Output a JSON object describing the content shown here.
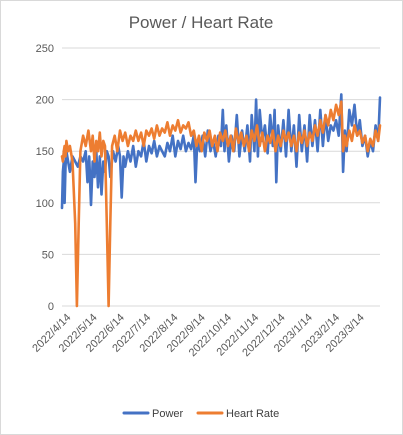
{
  "chart_data": {
    "type": "line",
    "title": "Power / Heart Rate",
    "xlabel": "",
    "ylabel": "",
    "ylim": [
      0,
      250
    ],
    "yticks": [
      "0",
      "50",
      "100",
      "150",
      "200",
      "250"
    ],
    "xlim": [
      "2022-04-08",
      "2023-04-05"
    ],
    "xticks": [
      "2022/4/14",
      "2022/5/14",
      "2022/6/14",
      "2022/7/14",
      "2022/8/14",
      "2022/9/14",
      "2022/10/14",
      "2022/11/14",
      "2022/12/14",
      "2023/1/14",
      "2023/2/14",
      "2023/3/14"
    ],
    "grid": "horizontal",
    "legend": "bottom",
    "colors": {
      "power": "#4472c4",
      "heart_rate": "#ed7d31",
      "grid": "#d9d9d9",
      "text": "#595959"
    },
    "series": [
      {
        "name": "Power",
        "points": [
          [
            "2022-04-08",
            95
          ],
          [
            "2022-04-09",
            130
          ],
          [
            "2022-04-10",
            140
          ],
          [
            "2022-04-11",
            100
          ],
          [
            "2022-04-12",
            135
          ],
          [
            "2022-04-13",
            150
          ],
          [
            "2022-04-15",
            140
          ],
          [
            "2022-04-17",
            130
          ],
          [
            "2022-04-20",
            145
          ],
          [
            "2022-04-23",
            140
          ],
          [
            "2022-04-26",
            135
          ],
          [
            "2022-04-29",
            145
          ],
          [
            "2022-05-02",
            140
          ],
          [
            "2022-05-05",
            150
          ],
          [
            "2022-05-07",
            120
          ],
          [
            "2022-05-09",
            145
          ],
          [
            "2022-05-11",
            98
          ],
          [
            "2022-05-13",
            140
          ],
          [
            "2022-05-15",
            125
          ],
          [
            "2022-05-17",
            150
          ],
          [
            "2022-05-19",
            115
          ],
          [
            "2022-05-21",
            145
          ],
          [
            "2022-05-23",
            108
          ],
          [
            "2022-05-25",
            140
          ],
          [
            "2022-05-27",
            130
          ],
          [
            "2022-05-29",
            150
          ],
          [
            "2022-05-31",
            145
          ],
          [
            "2022-06-02",
            125
          ],
          [
            "2022-06-05",
            150
          ],
          [
            "2022-06-08",
            140
          ],
          [
            "2022-06-11",
            155
          ],
          [
            "2022-06-13",
            145
          ],
          [
            "2022-06-15",
            105
          ],
          [
            "2022-06-17",
            145
          ],
          [
            "2022-06-19",
            135
          ],
          [
            "2022-06-22",
            150
          ],
          [
            "2022-06-25",
            140
          ],
          [
            "2022-06-28",
            155
          ],
          [
            "2022-07-01",
            135
          ],
          [
            "2022-07-04",
            150
          ],
          [
            "2022-07-07",
            145
          ],
          [
            "2022-07-10",
            160
          ],
          [
            "2022-07-13",
            140
          ],
          [
            "2022-07-16",
            155
          ],
          [
            "2022-07-19",
            148
          ],
          [
            "2022-07-22",
            160
          ],
          [
            "2022-07-25",
            145
          ],
          [
            "2022-07-28",
            155
          ],
          [
            "2022-07-31",
            150
          ],
          [
            "2022-08-03",
            145
          ],
          [
            "2022-08-06",
            158
          ],
          [
            "2022-08-09",
            150
          ],
          [
            "2022-08-12",
            165
          ],
          [
            "2022-08-15",
            145
          ],
          [
            "2022-08-18",
            160
          ],
          [
            "2022-08-21",
            152
          ],
          [
            "2022-08-24",
            165
          ],
          [
            "2022-08-27",
            150
          ],
          [
            "2022-08-30",
            158
          ],
          [
            "2022-09-02",
            152
          ],
          [
            "2022-09-05",
            165
          ],
          [
            "2022-09-07",
            120
          ],
          [
            "2022-09-09",
            160
          ],
          [
            "2022-09-12",
            150
          ],
          [
            "2022-09-15",
            165
          ],
          [
            "2022-09-18",
            145
          ],
          [
            "2022-09-21",
            170
          ],
          [
            "2022-09-24",
            150
          ],
          [
            "2022-09-27",
            160
          ],
          [
            "2022-09-30",
            145
          ],
          [
            "2022-10-03",
            165
          ],
          [
            "2022-10-06",
            155
          ],
          [
            "2022-10-08",
            190
          ],
          [
            "2022-10-10",
            150
          ],
          [
            "2022-10-12",
            175
          ],
          [
            "2022-10-15",
            140
          ],
          [
            "2022-10-18",
            165
          ],
          [
            "2022-10-21",
            150
          ],
          [
            "2022-10-24",
            185
          ],
          [
            "2022-10-27",
            145
          ],
          [
            "2022-10-30",
            170
          ],
          [
            "2022-11-02",
            150
          ],
          [
            "2022-11-05",
            175
          ],
          [
            "2022-11-08",
            140
          ],
          [
            "2022-11-10",
            185
          ],
          [
            "2022-11-13",
            150
          ],
          [
            "2022-11-15",
            200
          ],
          [
            "2022-11-17",
            145
          ],
          [
            "2022-11-19",
            190
          ],
          [
            "2022-11-22",
            160
          ],
          [
            "2022-11-25",
            175
          ],
          [
            "2022-11-28",
            148
          ],
          [
            "2022-12-01",
            185
          ],
          [
            "2022-12-04",
            155
          ],
          [
            "2022-12-06",
            190
          ],
          [
            "2022-12-08",
            120
          ],
          [
            "2022-12-10",
            175
          ],
          [
            "2022-12-13",
            150
          ],
          [
            "2022-12-16",
            180
          ],
          [
            "2022-12-19",
            145
          ],
          [
            "2022-12-22",
            190
          ],
          [
            "2022-12-25",
            150
          ],
          [
            "2022-12-28",
            175
          ],
          [
            "2022-12-31",
            135
          ],
          [
            "2023-01-03",
            185
          ],
          [
            "2023-01-06",
            150
          ],
          [
            "2023-01-09",
            175
          ],
          [
            "2023-01-12",
            140
          ],
          [
            "2023-01-15",
            185
          ],
          [
            "2023-01-18",
            155
          ],
          [
            "2023-01-21",
            180
          ],
          [
            "2023-01-24",
            150
          ],
          [
            "2023-01-27",
            190
          ],
          [
            "2023-01-30",
            155
          ],
          [
            "2023-02-02",
            185
          ],
          [
            "2023-02-05",
            160
          ],
          [
            "2023-02-08",
            175
          ],
          [
            "2023-02-11",
            170
          ],
          [
            "2023-02-14",
            180
          ],
          [
            "2023-02-17",
            165
          ],
          [
            "2023-02-20",
            205
          ],
          [
            "2023-02-22",
            130
          ],
          [
            "2023-02-24",
            170
          ],
          [
            "2023-02-26",
            150
          ],
          [
            "2023-03-01",
            190
          ],
          [
            "2023-03-04",
            175
          ],
          [
            "2023-03-07",
            195
          ],
          [
            "2023-03-10",
            165
          ],
          [
            "2023-03-13",
            180
          ],
          [
            "2023-03-16",
            155
          ],
          [
            "2023-03-19",
            165
          ],
          [
            "2023-03-22",
            145
          ],
          [
            "2023-03-25",
            160
          ],
          [
            "2023-03-28",
            150
          ],
          [
            "2023-03-31",
            175
          ],
          [
            "2023-04-03",
            160
          ],
          [
            "2023-04-05",
            202
          ]
        ]
      },
      {
        "name": "Heart Rate",
        "points": [
          [
            "2022-04-08",
            145
          ],
          [
            "2022-04-09",
            140
          ],
          [
            "2022-04-10",
            150
          ],
          [
            "2022-04-11",
            155
          ],
          [
            "2022-04-12",
            145
          ],
          [
            "2022-04-13",
            160
          ],
          [
            "2022-04-15",
            150
          ],
          [
            "2022-04-17",
            155
          ],
          [
            "2022-04-20",
            140
          ],
          [
            "2022-04-23",
            80
          ],
          [
            "2022-04-25",
            0
          ],
          [
            "2022-04-27",
            80
          ],
          [
            "2022-04-29",
            150
          ],
          [
            "2022-05-02",
            165
          ],
          [
            "2022-05-05",
            155
          ],
          [
            "2022-05-08",
            170
          ],
          [
            "2022-05-11",
            150
          ],
          [
            "2022-05-13",
            165
          ],
          [
            "2022-05-15",
            140
          ],
          [
            "2022-05-17",
            160
          ],
          [
            "2022-05-19",
            150
          ],
          [
            "2022-05-21",
            168
          ],
          [
            "2022-05-23",
            145
          ],
          [
            "2022-05-25",
            160
          ],
          [
            "2022-05-27",
            155
          ],
          [
            "2022-05-29",
            80
          ],
          [
            "2022-05-31",
            0
          ],
          [
            "2022-06-02",
            80
          ],
          [
            "2022-06-04",
            155
          ],
          [
            "2022-06-07",
            165
          ],
          [
            "2022-06-10",
            150
          ],
          [
            "2022-06-13",
            170
          ],
          [
            "2022-06-16",
            160
          ],
          [
            "2022-06-19",
            168
          ],
          [
            "2022-06-22",
            155
          ],
          [
            "2022-06-25",
            165
          ],
          [
            "2022-06-28",
            160
          ],
          [
            "2022-07-01",
            170
          ],
          [
            "2022-07-04",
            160
          ],
          [
            "2022-07-07",
            168
          ],
          [
            "2022-07-10",
            155
          ],
          [
            "2022-07-13",
            170
          ],
          [
            "2022-07-16",
            165
          ],
          [
            "2022-07-19",
            172
          ],
          [
            "2022-07-22",
            162
          ],
          [
            "2022-07-25",
            175
          ],
          [
            "2022-07-28",
            165
          ],
          [
            "2022-07-31",
            172
          ],
          [
            "2022-08-03",
            168
          ],
          [
            "2022-08-06",
            178
          ],
          [
            "2022-08-09",
            165
          ],
          [
            "2022-08-12",
            175
          ],
          [
            "2022-08-15",
            170
          ],
          [
            "2022-08-18",
            180
          ],
          [
            "2022-08-21",
            168
          ],
          [
            "2022-08-24",
            175
          ],
          [
            "2022-08-27",
            172
          ],
          [
            "2022-08-30",
            178
          ],
          [
            "2022-09-02",
            165
          ],
          [
            "2022-09-05",
            170
          ],
          [
            "2022-09-08",
            155
          ],
          [
            "2022-09-11",
            165
          ],
          [
            "2022-09-14",
            150
          ],
          [
            "2022-09-17",
            168
          ],
          [
            "2022-09-20",
            160
          ],
          [
            "2022-09-23",
            170
          ],
          [
            "2022-09-26",
            155
          ],
          [
            "2022-09-29",
            165
          ],
          [
            "2022-10-02",
            150
          ],
          [
            "2022-10-05",
            168
          ],
          [
            "2022-10-08",
            160
          ],
          [
            "2022-10-11",
            170
          ],
          [
            "2022-10-14",
            155
          ],
          [
            "2022-10-17",
            165
          ],
          [
            "2022-10-20",
            150
          ],
          [
            "2022-10-23",
            172
          ],
          [
            "2022-10-26",
            158
          ],
          [
            "2022-10-29",
            168
          ],
          [
            "2022-11-01",
            155
          ],
          [
            "2022-11-04",
            165
          ],
          [
            "2022-11-07",
            150
          ],
          [
            "2022-11-10",
            170
          ],
          [
            "2022-11-13",
            160
          ],
          [
            "2022-11-16",
            175
          ],
          [
            "2022-11-19",
            155
          ],
          [
            "2022-11-22",
            168
          ],
          [
            "2022-11-25",
            150
          ],
          [
            "2022-11-28",
            165
          ],
          [
            "2022-12-01",
            158
          ],
          [
            "2022-12-04",
            170
          ],
          [
            "2022-12-07",
            150
          ],
          [
            "2022-12-10",
            165
          ],
          [
            "2022-12-13",
            155
          ],
          [
            "2022-12-16",
            170
          ],
          [
            "2022-12-19",
            160
          ],
          [
            "2022-12-22",
            168
          ],
          [
            "2022-12-25",
            155
          ],
          [
            "2022-12-28",
            165
          ],
          [
            "2022-12-31",
            150
          ],
          [
            "2023-01-03",
            168
          ],
          [
            "2023-01-06",
            158
          ],
          [
            "2023-01-09",
            170
          ],
          [
            "2023-01-12",
            155
          ],
          [
            "2023-01-15",
            168
          ],
          [
            "2023-01-18",
            160
          ],
          [
            "2023-01-21",
            175
          ],
          [
            "2023-01-24",
            165
          ],
          [
            "2023-01-27",
            180
          ],
          [
            "2023-01-30",
            168
          ],
          [
            "2023-02-02",
            185
          ],
          [
            "2023-02-05",
            175
          ],
          [
            "2023-02-08",
            190
          ],
          [
            "2023-02-11",
            180
          ],
          [
            "2023-02-14",
            195
          ],
          [
            "2023-02-17",
            185
          ],
          [
            "2023-02-20",
            198
          ],
          [
            "2023-02-22",
            150
          ],
          [
            "2023-02-24",
            165
          ],
          [
            "2023-02-26",
            155
          ],
          [
            "2023-03-01",
            170
          ],
          [
            "2023-03-04",
            160
          ],
          [
            "2023-03-07",
            175
          ],
          [
            "2023-03-10",
            165
          ],
          [
            "2023-03-13",
            170
          ],
          [
            "2023-03-16",
            158
          ],
          [
            "2023-03-19",
            165
          ],
          [
            "2023-03-22",
            150
          ],
          [
            "2023-03-25",
            162
          ],
          [
            "2023-03-28",
            155
          ],
          [
            "2023-03-31",
            170
          ],
          [
            "2023-04-03",
            160
          ],
          [
            "2023-04-05",
            175
          ]
        ]
      }
    ]
  }
}
